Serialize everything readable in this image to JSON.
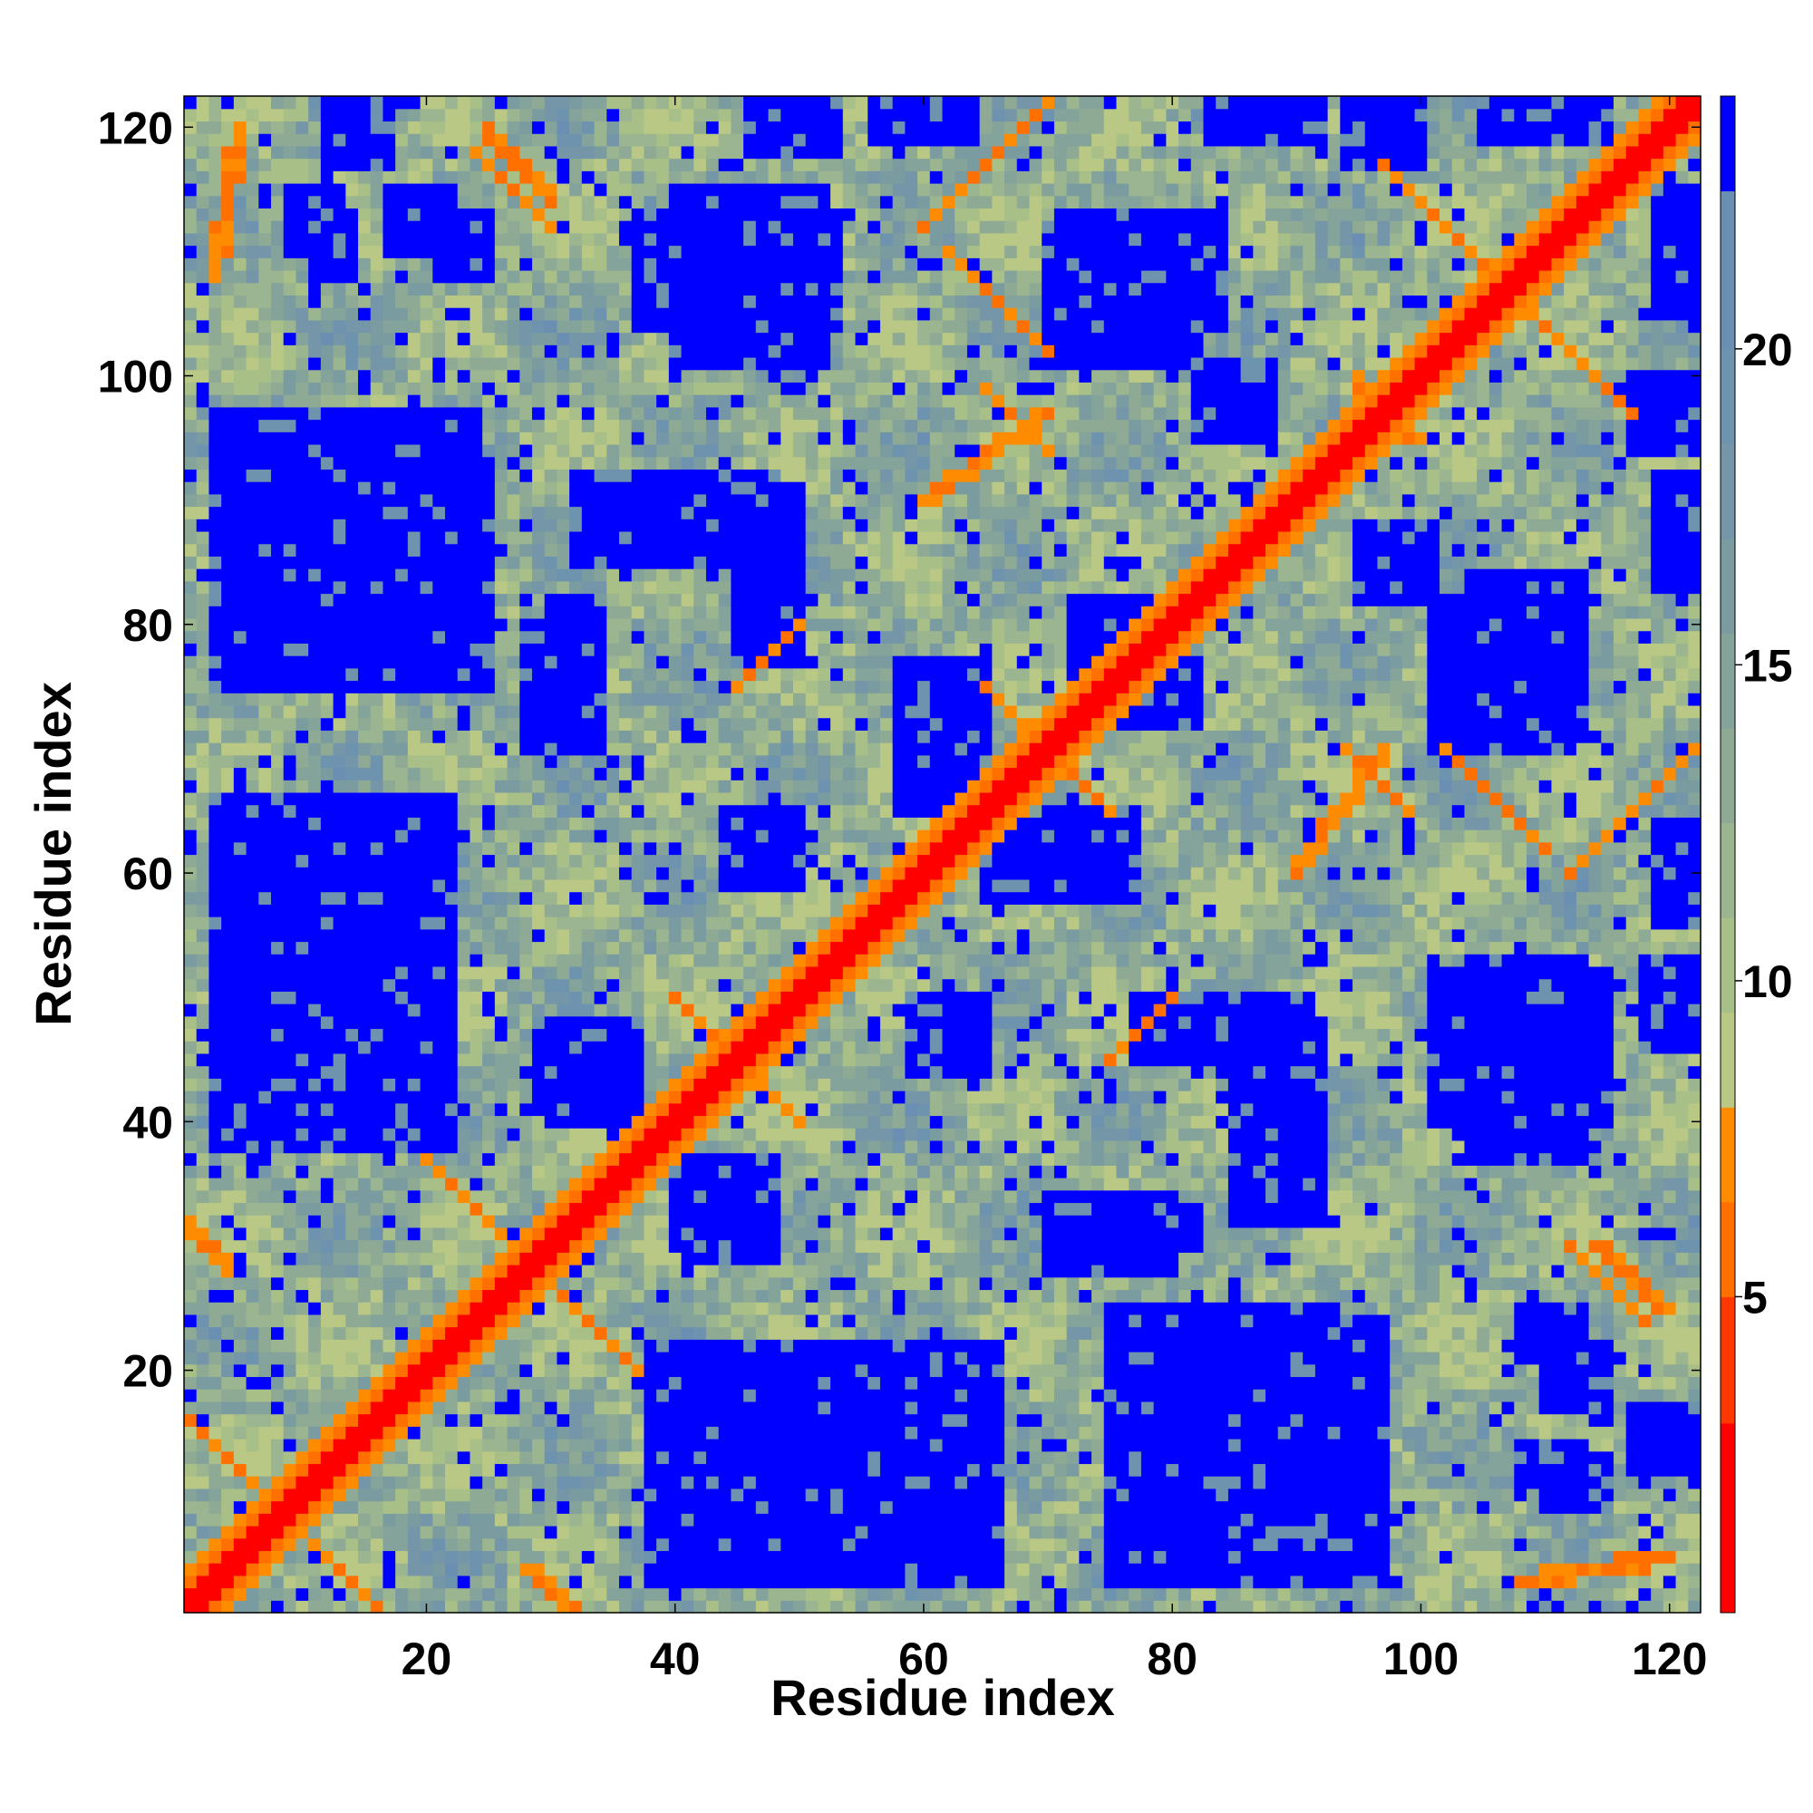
{
  "chart_data": {
    "type": "heatmap",
    "title": "",
    "xlabel": "Residue index",
    "ylabel": "Residue index",
    "n_residues": 122,
    "x_range": [
      1,
      122
    ],
    "y_range": [
      1,
      122
    ],
    "x_ticks": [
      20,
      40,
      60,
      80,
      100,
      120
    ],
    "y_ticks": [
      20,
      40,
      60,
      80,
      100,
      120
    ],
    "x_tick_labels": [
      "20",
      "40",
      "60",
      "80",
      "100",
      "120"
    ],
    "y_tick_labels": [
      "20",
      "40",
      "60",
      "80",
      "100",
      "120"
    ],
    "colorbar": {
      "range": [
        0,
        24
      ],
      "ticks": [
        5,
        10,
        15,
        20
      ],
      "tick_labels": [
        "5",
        "10",
        "15",
        "20"
      ],
      "levels": [
        {
          "from": 0,
          "to": 3,
          "color": "#ff0000"
        },
        {
          "from": 3,
          "to": 5,
          "color": "#ff3800"
        },
        {
          "from": 5,
          "to": 6.5,
          "color": "#ff7000"
        },
        {
          "from": 6.5,
          "to": 8,
          "color": "#ff8c00"
        },
        {
          "from": 8,
          "to": 9.5,
          "color": "#b9c884"
        },
        {
          "from": 9.5,
          "to": 11,
          "color": "#a8c088"
        },
        {
          "from": 11,
          "to": 12.5,
          "color": "#9ab590"
        },
        {
          "from": 12.5,
          "to": 14,
          "color": "#8eaa94"
        },
        {
          "from": 14,
          "to": 15.5,
          "color": "#84a39a"
        },
        {
          "from": 15.5,
          "to": 17,
          "color": "#7a9ca0"
        },
        {
          "from": 17,
          "to": 18.5,
          "color": "#7496a8"
        },
        {
          "from": 18.5,
          "to": 20,
          "color": "#6e93ae"
        },
        {
          "from": 20,
          "to": 22.5,
          "color": "#6a8fb2"
        },
        {
          "from": 22.5,
          "to": 24,
          "color": "#0000ff"
        }
      ]
    },
    "matrix_description_note_omitted": true,
    "far_regions": [
      {
        "x": [
          40,
          52
        ],
        "y": [
          101,
          115
        ]
      },
      {
        "x": [
          70,
          82
        ],
        "y": [
          101,
          112
        ]
      },
      {
        "x": [
          3,
          25
        ],
        "y": [
          75,
          93
        ]
      },
      {
        "x": [
          3,
          22
        ],
        "y": [
          40,
          58
        ]
      },
      {
        "x": [
          3,
          22
        ],
        "y": [
          58,
          66
        ]
      },
      {
        "x": [
          38,
          50
        ],
        "y": [
          3,
          22
        ]
      },
      {
        "x": [
          77,
          97
        ],
        "y": [
          3,
          24
        ]
      },
      {
        "x": [
          104,
          113
        ],
        "y": [
          37,
          53
        ]
      },
      {
        "x": [
          104,
          113
        ],
        "y": [
          71,
          84
        ]
      },
      {
        "x": [
          70,
          80
        ],
        "y": [
          28,
          34
        ]
      },
      {
        "x": [
          58,
          65
        ],
        "y": [
          70,
          77
        ]
      },
      {
        "x": [
          30,
          37
        ],
        "y": [
          40,
          48
        ]
      },
      {
        "x": [
          30,
          33
        ],
        "y": [
          70,
          82
        ]
      },
      {
        "x": [
          85,
          92
        ],
        "y": [
          32,
          48
        ]
      },
      {
        "x": [
          11,
          14
        ],
        "y": [
          108,
          113
        ]
      },
      {
        "x": [
          21,
          25
        ],
        "y": [
          108,
          113
        ]
      },
      {
        "x": [
          119,
          122
        ],
        "y": [
          105,
          115
        ]
      },
      {
        "x": [
          119,
          122
        ],
        "y": [
          83,
          92
        ]
      },
      {
        "x": [
          119,
          122
        ],
        "y": [
          56,
          64
        ]
      },
      {
        "x": [
          41,
          47
        ],
        "y": [
          29,
          33
        ]
      },
      {
        "x": [
          110,
          115
        ],
        "y": [
          9,
          13
        ]
      },
      {
        "x": [
          110,
          115
        ],
        "y": [
          17,
          22
        ]
      },
      {
        "x": [
          95,
          101
        ],
        "y": [
          82,
          88
        ]
      },
      {
        "x": [
          44,
          50
        ],
        "y": [
          59,
          65
        ]
      },
      {
        "x": [
          54,
          61
        ],
        "y": [
          7,
          14
        ]
      },
      {
        "x": [
          60,
          64
        ],
        "y": [
          44,
          50
        ]
      },
      {
        "x": [
          65,
          72
        ],
        "y": [
          58,
          64
        ]
      },
      {
        "x": [
          45,
          50
        ],
        "y": [
          77,
          91
        ]
      },
      {
        "x": [
          75,
          82
        ],
        "y": [
          72,
          77
        ]
      },
      {
        "x": [
          12,
          17
        ],
        "y": [
          117,
          122
        ]
      },
      {
        "x": [
          46,
          53
        ],
        "y": [
          118,
          122
        ]
      },
      {
        "x": [
          94,
          100
        ],
        "y": [
          117,
          122
        ]
      }
    ],
    "near_contacts": [
      {
        "x0": 1,
        "y0": 16,
        "x1": 16,
        "y1": 1
      },
      {
        "x0": 22,
        "y0": 35,
        "x1": 37,
        "y1": 20
      },
      {
        "x0": 40,
        "y0": 50,
        "x1": 50,
        "y1": 40
      },
      {
        "x0": 65,
        "y0": 75,
        "x1": 75,
        "y1": 65
      },
      {
        "x0": 95,
        "y0": 98,
        "x1": 100,
        "y1": 95
      },
      {
        "x0": 97,
        "y0": 117,
        "x1": 117,
        "y1": 97
      },
      {
        "x0": 62,
        "y0": 110,
        "x1": 70,
        "y1": 102
      },
      {
        "x0": 65,
        "y0": 99,
        "x1": 70,
        "y1": 94
      },
      {
        "x0": 112,
        "y0": 60,
        "x1": 122,
        "y1": 70
      },
      {
        "x0": 118,
        "y0": 24,
        "x1": 112,
        "y1": 30
      },
      {
        "x0": 5,
        "y0": 120,
        "x1": 3,
        "y1": 108
      },
      {
        "x0": 25,
        "y0": 120,
        "x1": 30,
        "y1": 114
      },
      {
        "x0": 45,
        "y0": 75,
        "x1": 50,
        "y1": 80
      },
      {
        "x0": 90,
        "y0": 60,
        "x1": 97,
        "y1": 70
      },
      {
        "x0": 75,
        "y0": 45,
        "x1": 80,
        "y1": 50
      },
      {
        "x0": 28,
        "y0": 4,
        "x1": 32,
        "y1": 1
      }
    ]
  }
}
